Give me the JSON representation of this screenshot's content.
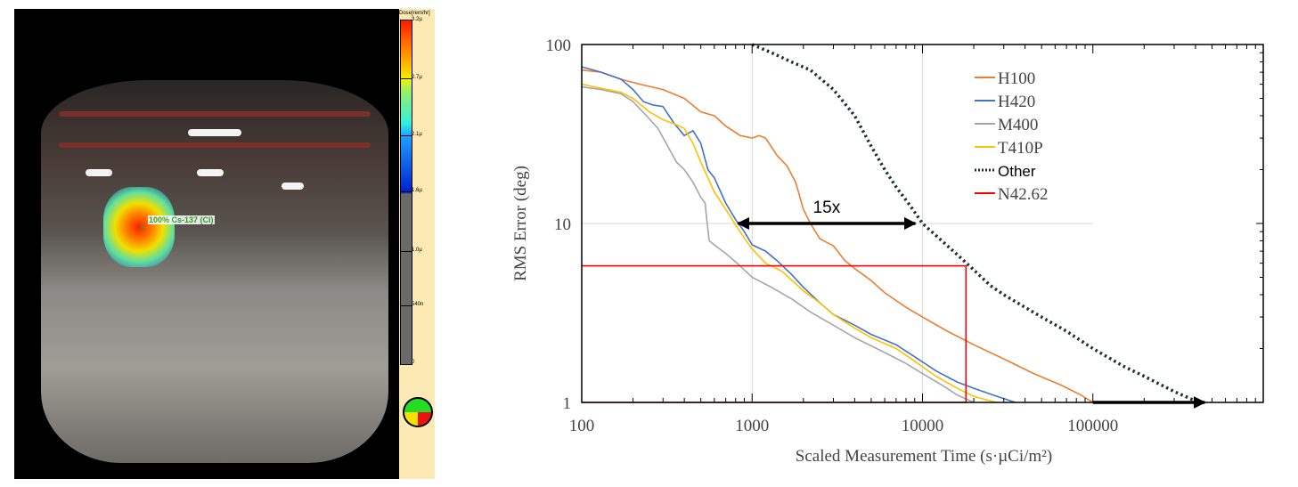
{
  "gamma_image": {
    "source_label": "100% Cs-137 (Cl)",
    "colorbar": {
      "title": "Dose[rem/hr]",
      "ticks": [
        "3.2μ",
        "2.7μ",
        "2.1μ",
        "1.6μ",
        "1.0μ",
        "540n",
        "0"
      ]
    },
    "compass_icon": "orientation-compass-icon"
  },
  "chart_data": {
    "type": "line",
    "title": "",
    "xlabel": "Scaled Measurement Time (s·µCi/m²)",
    "ylabel": "RMS Error (deg)",
    "xscale": "log",
    "yscale": "log",
    "xlim": [
      100,
      1000000
    ],
    "ylim": [
      1,
      100
    ],
    "x_ticks": [
      "100",
      "1000",
      "10000",
      "100000"
    ],
    "y_ticks": [
      "1",
      "10",
      "100"
    ],
    "grid": true,
    "legend_position": "top-right",
    "series": [
      {
        "name": "H100",
        "color": "#ED7D31",
        "style": "solid",
        "points": [
          [
            100,
            72
          ],
          [
            130,
            70
          ],
          [
            170,
            64
          ],
          [
            220,
            60
          ],
          [
            300,
            56
          ],
          [
            400,
            50
          ],
          [
            500,
            42
          ],
          [
            600,
            40
          ],
          [
            700,
            35
          ],
          [
            850,
            31
          ],
          [
            1000,
            30
          ],
          [
            1100,
            31
          ],
          [
            1200,
            30
          ],
          [
            1400,
            24
          ],
          [
            1600,
            21
          ],
          [
            1800,
            17
          ],
          [
            2000,
            12
          ],
          [
            2200,
            10
          ],
          [
            2500,
            8.2
          ],
          [
            3000,
            7.5
          ],
          [
            3500,
            6.2
          ],
          [
            4000,
            5.6
          ],
          [
            5000,
            4.8
          ],
          [
            6000,
            4.1
          ],
          [
            8000,
            3.4
          ],
          [
            10000,
            3.0
          ],
          [
            14000,
            2.5
          ],
          [
            20000,
            2.1
          ],
          [
            30000,
            1.75
          ],
          [
            45000,
            1.45
          ],
          [
            65000,
            1.25
          ],
          [
            85000,
            1.1
          ],
          [
            100000,
            1.0
          ]
        ]
      },
      {
        "name": "H420",
        "color": "#4472C4",
        "style": "solid",
        "points": [
          [
            100,
            75
          ],
          [
            130,
            70
          ],
          [
            170,
            64
          ],
          [
            200,
            56
          ],
          [
            230,
            48
          ],
          [
            260,
            46
          ],
          [
            300,
            45
          ],
          [
            350,
            36
          ],
          [
            400,
            31
          ],
          [
            450,
            33
          ],
          [
            500,
            28
          ],
          [
            550,
            20
          ],
          [
            600,
            18
          ],
          [
            700,
            13
          ],
          [
            800,
            10.5
          ],
          [
            900,
            9
          ],
          [
            1000,
            7.6
          ],
          [
            1200,
            7.0
          ],
          [
            1400,
            6.2
          ],
          [
            1700,
            5.2
          ],
          [
            2000,
            4.4
          ],
          [
            2500,
            3.6
          ],
          [
            3000,
            3.1
          ],
          [
            4000,
            2.7
          ],
          [
            5000,
            2.4
          ],
          [
            7000,
            2.1
          ],
          [
            9000,
            1.8
          ],
          [
            12000,
            1.5
          ],
          [
            16000,
            1.3
          ],
          [
            20000,
            1.2
          ],
          [
            26000,
            1.1
          ],
          [
            35000,
            1.0
          ]
        ]
      },
      {
        "name": "M400",
        "color": "#A5A5A5",
        "style": "solid",
        "points": [
          [
            100,
            58
          ],
          [
            130,
            56
          ],
          [
            170,
            53
          ],
          [
            200,
            48
          ],
          [
            240,
            40
          ],
          [
            280,
            34
          ],
          [
            320,
            27
          ],
          [
            360,
            22
          ],
          [
            400,
            20
          ],
          [
            450,
            17
          ],
          [
            500,
            14
          ],
          [
            530,
            13
          ],
          [
            545,
            10
          ],
          [
            560,
            8
          ],
          [
            600,
            7.6
          ],
          [
            700,
            6.8
          ],
          [
            800,
            6.1
          ],
          [
            900,
            5.5
          ],
          [
            1000,
            5.0
          ],
          [
            1300,
            4.4
          ],
          [
            1700,
            3.8
          ],
          [
            2200,
            3.2
          ],
          [
            3000,
            2.7
          ],
          [
            4000,
            2.3
          ],
          [
            6000,
            1.9
          ],
          [
            8000,
            1.65
          ],
          [
            10000,
            1.45
          ],
          [
            13000,
            1.25
          ],
          [
            16000,
            1.1
          ],
          [
            20000,
            1.0
          ]
        ]
      },
      {
        "name": "T410P",
        "color": "#FFC000",
        "style": "solid",
        "points": [
          [
            100,
            60
          ],
          [
            130,
            57
          ],
          [
            170,
            54
          ],
          [
            200,
            50
          ],
          [
            250,
            42
          ],
          [
            300,
            38
          ],
          [
            350,
            36
          ],
          [
            400,
            34
          ],
          [
            450,
            28
          ],
          [
            500,
            22
          ],
          [
            550,
            18
          ],
          [
            600,
            15
          ],
          [
            700,
            12
          ],
          [
            800,
            9.8
          ],
          [
            900,
            8.3
          ],
          [
            1000,
            7.2
          ],
          [
            1200,
            6.0
          ],
          [
            1500,
            5.4
          ],
          [
            2000,
            4.2
          ],
          [
            2500,
            3.6
          ],
          [
            3000,
            3.1
          ],
          [
            4000,
            2.6
          ],
          [
            5000,
            2.3
          ],
          [
            7000,
            2.0
          ],
          [
            9000,
            1.7
          ],
          [
            12000,
            1.4
          ],
          [
            16000,
            1.2
          ],
          [
            20000,
            1.08
          ],
          [
            27000,
            1.0
          ]
        ]
      },
      {
        "name": "Other",
        "color": "#1B2F3A",
        "style": "dotted",
        "points": [
          [
            1000,
            100
          ],
          [
            1300,
            90
          ],
          [
            1700,
            80
          ],
          [
            2200,
            72
          ],
          [
            3000,
            56
          ],
          [
            4000,
            40
          ],
          [
            5000,
            27
          ],
          [
            6000,
            20
          ],
          [
            7000,
            16
          ],
          [
            8500,
            12.5
          ],
          [
            10000,
            10
          ],
          [
            13000,
            8
          ],
          [
            16000,
            6.7
          ],
          [
            20000,
            5.5
          ],
          [
            25000,
            4.5
          ],
          [
            30000,
            4.0
          ],
          [
            40000,
            3.4
          ],
          [
            50000,
            3.0
          ],
          [
            70000,
            2.5
          ],
          [
            100000,
            2.0
          ],
          [
            150000,
            1.6
          ],
          [
            200000,
            1.4
          ],
          [
            300000,
            1.15
          ],
          [
            420000,
            1.0
          ]
        ]
      },
      {
        "name": "N42.62",
        "color": "#FF0000",
        "style": "solid",
        "points": [
          [
            100,
            5.8
          ],
          [
            18000,
            5.8
          ],
          [
            18000,
            1
          ],
          [
            100,
            1
          ]
        ]
      }
    ],
    "annotations": [
      {
        "text": "15x",
        "type": "double-arrow",
        "from": [
          750,
          10
        ],
        "to": [
          10000,
          10
        ]
      },
      {
        "text": "",
        "type": "arrow",
        "from": [
          100000,
          1
        ],
        "to": [
          500000,
          1
        ]
      }
    ]
  }
}
